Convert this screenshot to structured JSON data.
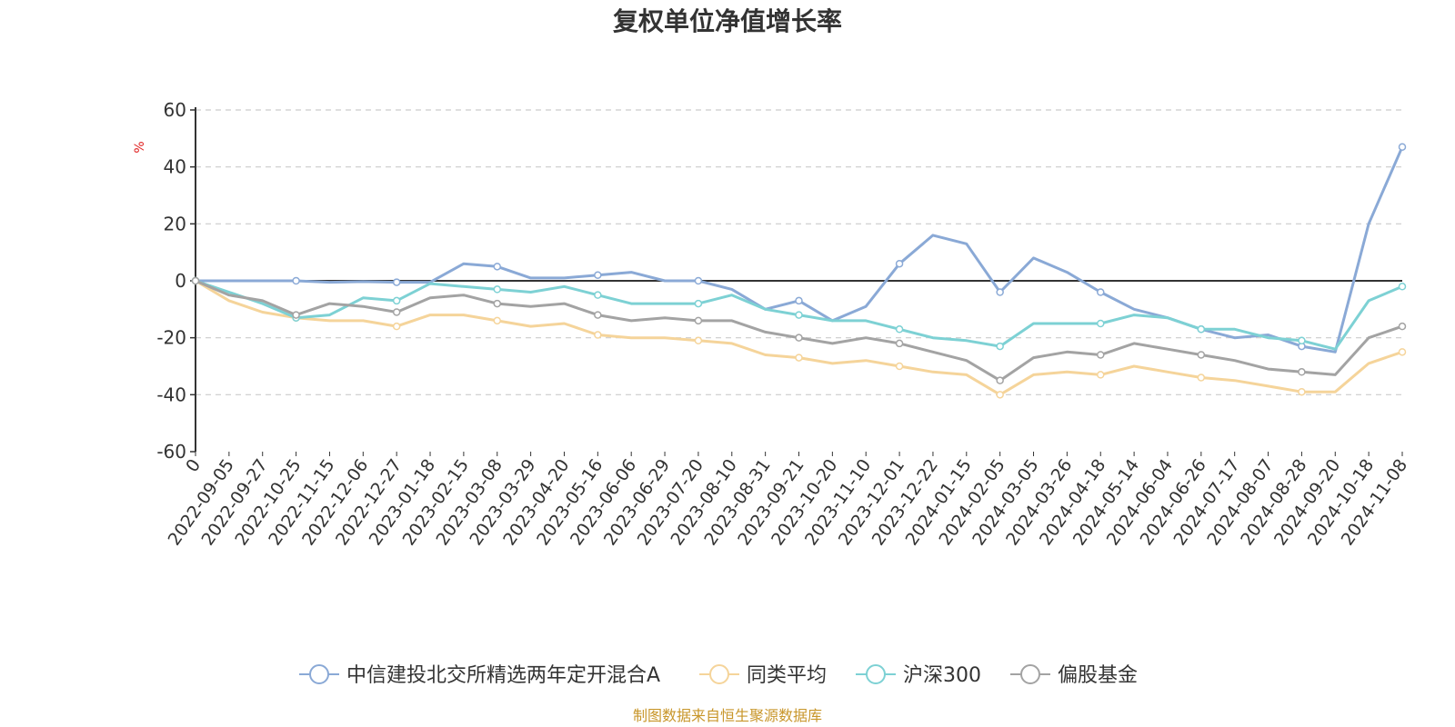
{
  "chart_data": {
    "type": "line",
    "title": "复权单位净值增长率",
    "ylabel": "%",
    "ylim": [
      -60,
      60
    ],
    "yticks": [
      60,
      40,
      20,
      0,
      -20,
      -40,
      -60
    ],
    "grid": true,
    "legend_position": "bottom",
    "x_labels": [
      "0",
      "2022-09-05",
      "2022-09-27",
      "2022-10-25",
      "2022-11-15",
      "2022-12-06",
      "2022-12-27",
      "2023-01-18",
      "2023-02-15",
      "2023-03-08",
      "2023-03-29",
      "2023-04-20",
      "2023-05-16",
      "2023-06-06",
      "2023-06-29",
      "2023-07-20",
      "2023-08-10",
      "2023-08-31",
      "2023-09-21",
      "2023-10-20",
      "2023-11-10",
      "2023-12-01",
      "2023-12-22",
      "2024-01-15",
      "2024-02-05",
      "2024-03-05",
      "2024-03-26",
      "2024-04-18",
      "2024-05-14",
      "2024-06-04",
      "2024-06-26",
      "2024-07-17",
      "2024-08-07",
      "2024-08-28",
      "2024-09-20",
      "2024-10-18",
      "2024-11-08"
    ],
    "series": [
      {
        "name": "中信建投北交所精选两年定开混合A",
        "color": "#8aa9d6",
        "values": [
          0,
          0,
          0,
          0,
          -0.5,
          -0.3,
          -0.5,
          -0.5,
          6,
          5,
          1,
          1,
          2,
          3,
          0,
          0,
          -3,
          -10,
          -7,
          -14,
          -9,
          6,
          16,
          13,
          -4,
          8,
          3,
          -4,
          -10,
          -13,
          -17,
          -20,
          -19,
          -23,
          -25,
          20,
          47
        ]
      },
      {
        "name": "同类平均",
        "color": "#f5d49a",
        "values": [
          0,
          -7,
          -11,
          -13,
          -14,
          -14,
          -16,
          -12,
          -12,
          -14,
          -16,
          -15,
          -19,
          -20,
          -20,
          -21,
          -22,
          -26,
          -27,
          -29,
          -28,
          -30,
          -32,
          -33,
          -40,
          -33,
          -32,
          -33,
          -30,
          -32,
          -34,
          -35,
          -37,
          -39,
          -39,
          -29,
          -25
        ]
      },
      {
        "name": "沪深300",
        "color": "#7dd1d4",
        "values": [
          0,
          -4,
          -8,
          -13,
          -12,
          -6,
          -7,
          -1,
          -2,
          -3,
          -4,
          -2,
          -5,
          -8,
          -8,
          -8,
          -5,
          -10,
          -12,
          -14,
          -14,
          -17,
          -20,
          -21,
          -23,
          -15,
          -15,
          -15,
          -12,
          -13,
          -17,
          -17,
          -20,
          -21,
          -24,
          -7,
          -2
        ]
      },
      {
        "name": "偏股基金",
        "color": "#a3a3a3",
        "values": [
          0,
          -5,
          -7,
          -12,
          -8,
          -9,
          -11,
          -6,
          -5,
          -8,
          -9,
          -8,
          -12,
          -14,
          -13,
          -14,
          -14,
          -18,
          -20,
          -22,
          -20,
          -22,
          -25,
          -28,
          -35,
          -27,
          -25,
          -26,
          -22,
          -24,
          -26,
          -28,
          -31,
          -32,
          -33,
          -20,
          -16
        ]
      }
    ]
  },
  "source_note": "制图数据来自恒生聚源数据库"
}
